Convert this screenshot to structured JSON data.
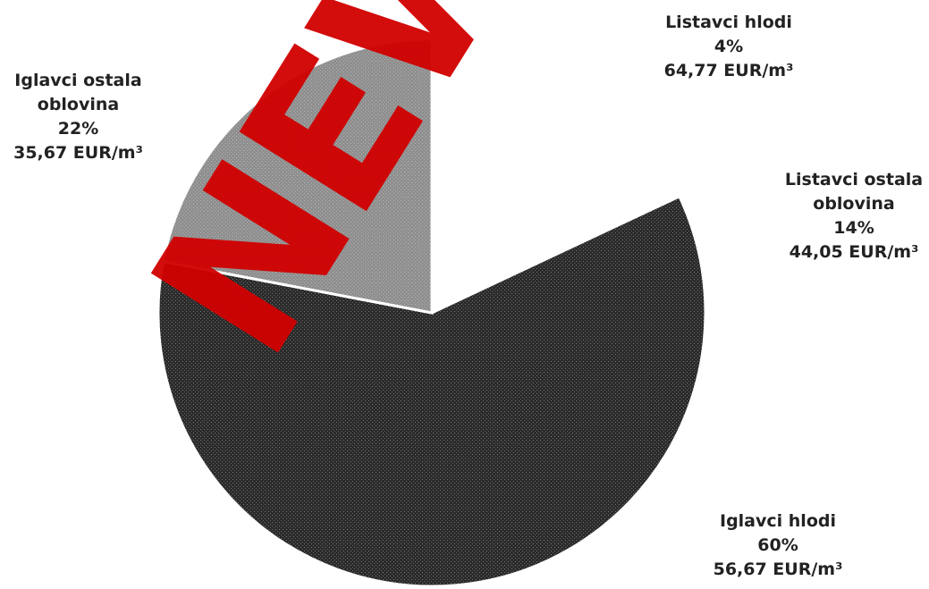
{
  "chart_data": {
    "type": "pie",
    "categories": [
      "Listavci hlodi",
      "Listavci ostala oblovina",
      "Iglavci hlodi",
      "Iglavci ostala oblovina"
    ],
    "values": [
      4,
      14,
      60,
      22
    ],
    "value_labels": [
      "4%",
      "14%",
      "60%",
      "22%"
    ],
    "prices": [
      "64,77 EUR/m³",
      "44,05 EUR/m³",
      "56,67 EUR/m³",
      "35,67 EUR/m³"
    ],
    "colors": [
      "#ffffff",
      "#ffffff",
      "#2b2b2b",
      "#8f8f8f"
    ],
    "watermark": "NEWS.SI"
  }
}
